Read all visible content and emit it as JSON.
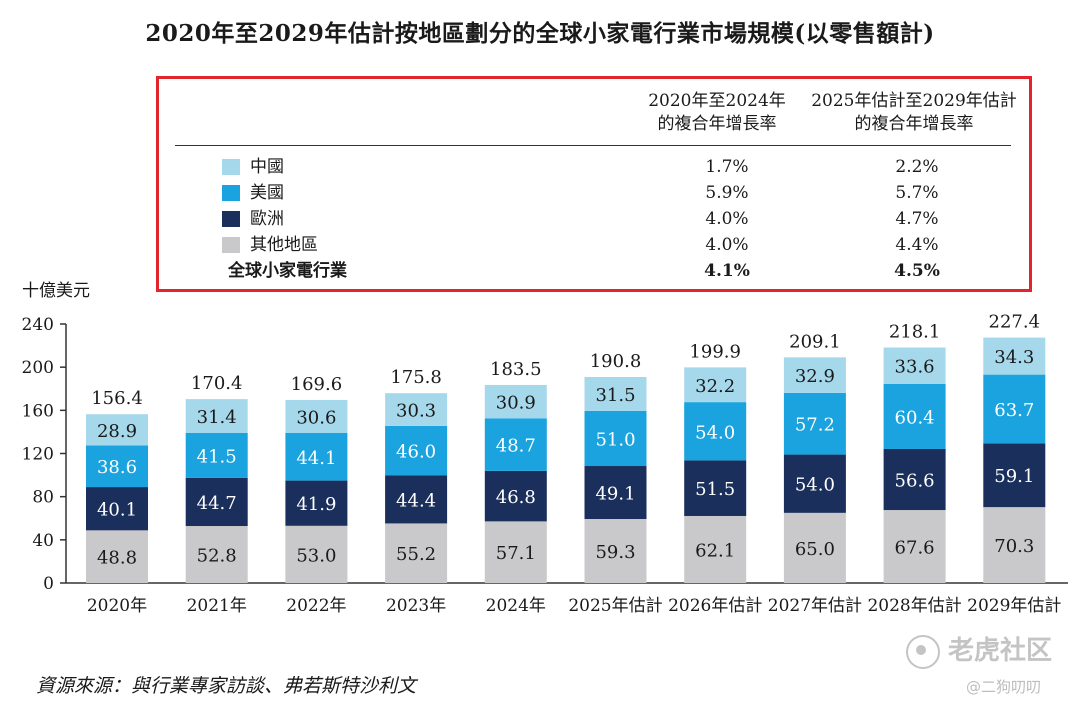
{
  "title": "2020年至2029年估計按地區劃分的全球小家電行業市場規模(以零售額計)",
  "table": {
    "col1_line1": "2020年至2024年",
    "col1_line2": "的複合年增長率",
    "col2_line1": "2025年估計至2029年估計",
    "col2_line2": "的複合年增長率",
    "rows": [
      {
        "label": "中國",
        "color": "#a6d8ec",
        "cagr1": "1.7%",
        "cagr2": "2.2%"
      },
      {
        "label": "美國",
        "color": "#1aa3de",
        "cagr1": "5.9%",
        "cagr2": "5.7%"
      },
      {
        "label": "歐洲",
        "color": "#1b2f5c",
        "cagr1": "4.0%",
        "cagr2": "4.7%"
      },
      {
        "label": "其他地區",
        "color": "#c9c9cb",
        "cagr1": "4.0%",
        "cagr2": "4.4%"
      }
    ],
    "total": {
      "label": "全球小家電行業",
      "cagr1": "4.1%",
      "cagr2": "4.5%"
    }
  },
  "unit": "十億美元",
  "source": "資源來源：與行業專家訪談、弗若斯特沙利文",
  "watermark": "老虎社区",
  "watermark_user": "@二狗叨叨",
  "chart_data": {
    "type": "bar",
    "stacked": true,
    "categories": [
      "2020年",
      "2021年",
      "2022年",
      "2023年",
      "2024年",
      "2025年估計",
      "2026年估計",
      "2027年估計",
      "2028年估計",
      "2029年估計"
    ],
    "series": [
      {
        "name": "其他地區",
        "color": "#c9c9cb",
        "label_color": "#1a1a1a",
        "values": [
          48.8,
          52.8,
          53.0,
          55.2,
          57.1,
          59.3,
          62.1,
          65.0,
          67.6,
          70.3
        ]
      },
      {
        "name": "歐洲",
        "color": "#1b2f5c",
        "label_color": "#ffffff",
        "values": [
          40.1,
          44.7,
          41.9,
          44.4,
          46.8,
          49.1,
          51.5,
          54.0,
          56.6,
          59.1
        ]
      },
      {
        "name": "美國",
        "color": "#1aa3de",
        "label_color": "#ffffff",
        "values": [
          38.6,
          41.5,
          44.1,
          46.0,
          48.7,
          51.0,
          54.0,
          57.2,
          60.4,
          63.7
        ]
      },
      {
        "name": "中國",
        "color": "#a6d8ec",
        "label_color": "#1a1a1a",
        "values": [
          28.9,
          31.4,
          30.6,
          30.3,
          30.9,
          31.5,
          32.2,
          32.9,
          33.6,
          34.3
        ]
      }
    ],
    "totals": [
      156.4,
      170.4,
      169.6,
      175.8,
      183.5,
      190.8,
      199.9,
      209.1,
      218.1,
      227.4
    ],
    "ylim": [
      0,
      240
    ],
    "yticks": [
      0,
      40,
      80,
      120,
      160,
      200,
      240
    ],
    "ylabel": "十億美元",
    "grid": false
  }
}
